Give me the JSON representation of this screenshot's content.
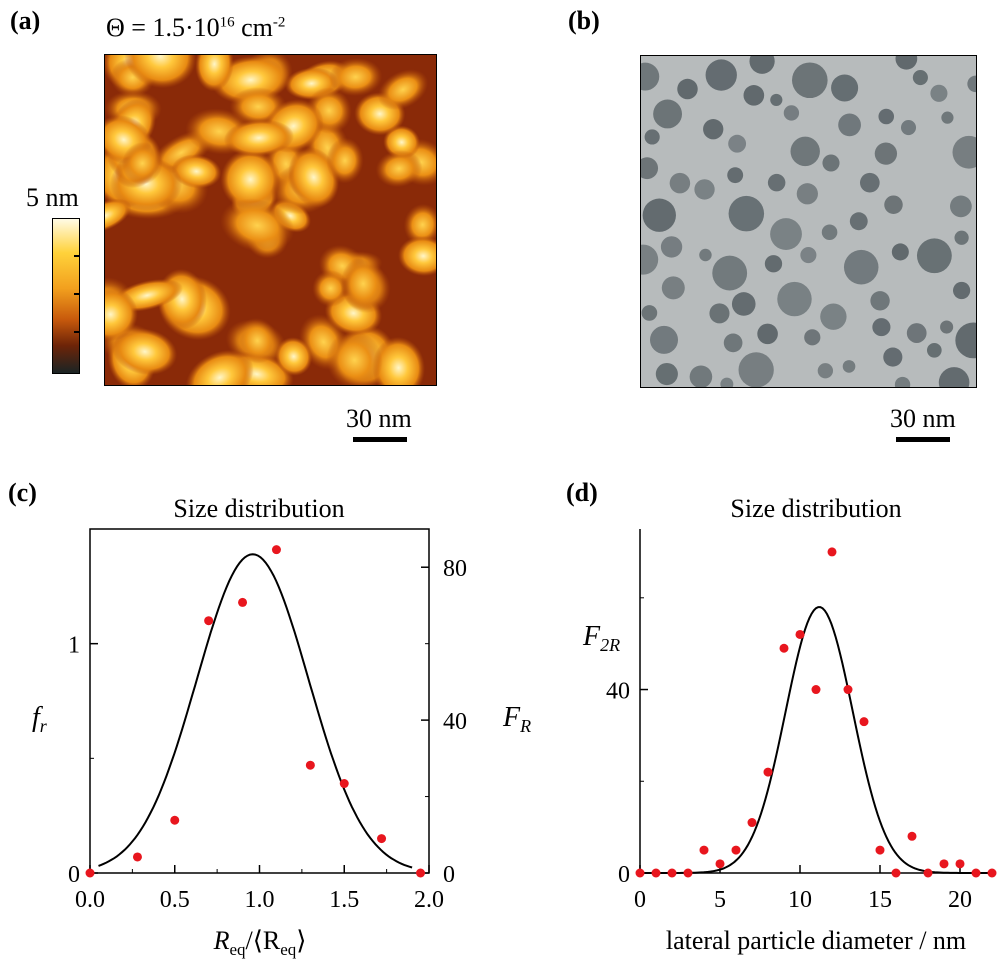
{
  "panels": {
    "a": {
      "label": "(a)",
      "coverage_symbol": "Θ = 1.5·10",
      "coverage_exp": "16",
      "coverage_unit": " cm",
      "coverage_unit_exp": "-2",
      "colorbar_max": "5 nm",
      "scalebar": "30 nm"
    },
    "b": {
      "label": "(b)",
      "scalebar": "30 nm"
    },
    "c": {
      "label": "(c)"
    },
    "d": {
      "label": "(d)"
    }
  },
  "colors": {
    "marker": "#e8161e",
    "curve": "#000000",
    "tem_bg": "#b7bbbc",
    "tem_particle": "#5b6468"
  },
  "chart_data": [
    {
      "type": "scatter",
      "title": "Size distribution",
      "xlabel_main": "R",
      "xlabel_sub": "eq",
      "xlabel_rest": "/⟨R",
      "xlabel_sub2": "eq",
      "xlabel_close": "⟩",
      "ylabel_left_main": "f",
      "ylabel_left_sub": "r",
      "ylabel_right_main": "F",
      "ylabel_right_sub": "R",
      "xlim": [
        0.0,
        2.0
      ],
      "ylim_left": [
        0,
        1.5
      ],
      "ylim_right": [
        0,
        90
      ],
      "x_ticks": [
        "0.0",
        "0.5",
        "1.0",
        "1.5",
        "2.0"
      ],
      "y_ticks_left": [
        "0",
        "1"
      ],
      "y_ticks_right": [
        "0",
        "40",
        "80"
      ],
      "series": [
        {
          "name": "measured",
          "kind": "points",
          "x": [
            0.0,
            0.28,
            0.5,
            0.7,
            0.9,
            1.1,
            1.3,
            1.5,
            1.72,
            1.95
          ],
          "y": [
            0.0,
            0.07,
            0.23,
            1.1,
            1.18,
            1.41,
            0.47,
            0.39,
            0.15,
            0.0
          ]
        },
        {
          "name": "fit",
          "kind": "gaussian",
          "amplitude": 1.39,
          "center": 0.96,
          "sigma": 0.33,
          "x_range": [
            0.05,
            1.9
          ]
        }
      ]
    },
    {
      "type": "scatter",
      "title": "Size distribution",
      "xlabel": "lateral particle diameter / nm",
      "ylabel_main": "F",
      "ylabel_sub": "2R",
      "xlim": [
        0,
        22
      ],
      "ylim": [
        0,
        75
      ],
      "x_ticks": [
        "0",
        "5",
        "10",
        "15",
        "20"
      ],
      "y_ticks": [
        "0",
        "40"
      ],
      "series": [
        {
          "name": "measured",
          "kind": "points",
          "x": [
            0,
            1,
            2,
            3,
            4,
            5,
            6,
            7,
            8,
            9,
            10,
            11,
            12,
            13,
            14,
            15,
            16,
            17,
            18,
            19,
            20,
            21,
            22
          ],
          "y": [
            0,
            0,
            0,
            0,
            5,
            2,
            5,
            11,
            22,
            49,
            52,
            40,
            70,
            40,
            33,
            5,
            0,
            8,
            0,
            2,
            2,
            0,
            0
          ]
        },
        {
          "name": "fit",
          "kind": "gaussian",
          "amplitude": 58,
          "center": 11.2,
          "sigma": 2.1,
          "x_range": [
            0,
            22
          ]
        }
      ]
    }
  ]
}
